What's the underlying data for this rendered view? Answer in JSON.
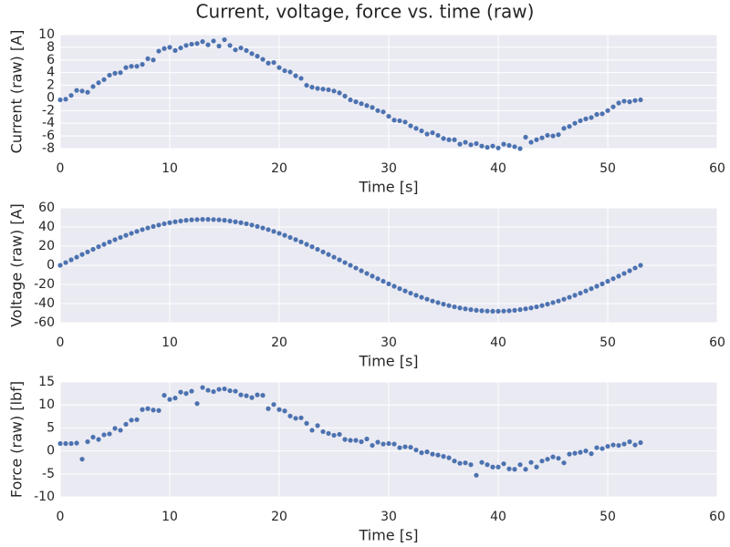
{
  "title": "Current, voltage, force vs. time (raw)",
  "chart_data": [
    {
      "type": "scatter",
      "xlabel": "Time [s]",
      "ylabel": "Current (raw) [A]",
      "color": "#4c72b0",
      "grid": true,
      "xlim": [
        0,
        60
      ],
      "xticks": [
        0,
        10,
        20,
        30,
        40,
        50,
        60
      ],
      "ylim": [
        -8,
        10
      ],
      "yticks": [
        -8,
        -6,
        -4,
        -2,
        0,
        2,
        4,
        6,
        8,
        10
      ],
      "x": [
        0,
        0.5,
        1,
        1.5,
        2,
        2.5,
        3,
        3.5,
        4,
        4.5,
        5,
        5.5,
        6,
        6.5,
        7,
        7.5,
        8,
        8.5,
        9,
        9.5,
        10,
        10.5,
        11,
        11.5,
        12,
        12.5,
        13,
        13.5,
        14,
        14.5,
        15,
        15.5,
        16,
        16.5,
        17,
        17.5,
        18,
        18.5,
        19,
        19.5,
        20,
        20.5,
        21,
        21.5,
        22,
        22.5,
        23,
        23.5,
        24,
        24.5,
        25,
        25.5,
        26,
        26.5,
        27,
        27.5,
        28,
        28.5,
        29,
        29.5,
        30,
        30.5,
        31,
        31.5,
        32,
        32.5,
        33,
        33.5,
        34,
        34.5,
        35,
        35.5,
        36,
        36.5,
        37,
        37.5,
        38,
        38.5,
        39,
        39.5,
        40,
        40.5,
        41,
        41.5,
        42,
        42.5,
        43,
        43.5,
        44,
        44.5,
        45,
        45.5,
        46,
        46.5,
        47,
        47.5,
        48,
        48.5,
        49,
        49.5,
        50,
        50.5,
        51,
        51.5,
        52,
        52.5,
        53
      ],
      "values": [
        -0.3,
        -0.2,
        0.4,
        1.2,
        1.1,
        0.9,
        1.8,
        2.4,
        2.9,
        3.6,
        3.9,
        4.0,
        4.8,
        5.0,
        5.0,
        5.3,
        6.2,
        6.0,
        7.4,
        7.8,
        8.0,
        7.5,
        7.9,
        8.3,
        8.5,
        8.6,
        8.9,
        8.4,
        9.0,
        8.2,
        9.2,
        8.3,
        7.6,
        7.9,
        7.5,
        7.0,
        6.6,
        6.1,
        5.5,
        5.6,
        4.8,
        4.3,
        4.1,
        3.5,
        3.1,
        2.0,
        1.7,
        1.5,
        1.4,
        1.3,
        1.1,
        0.8,
        0.3,
        -0.3,
        -0.6,
        -0.9,
        -1.2,
        -1.5,
        -2.0,
        -2.2,
        -2.9,
        -3.5,
        -3.6,
        -3.8,
        -4.4,
        -4.8,
        -5.2,
        -5.7,
        -5.5,
        -5.9,
        -6.4,
        -6.6,
        -6.6,
        -7.3,
        -7.0,
        -7.4,
        -7.2,
        -7.6,
        -7.8,
        -7.6,
        -7.9,
        -7.3,
        -7.5,
        -7.7,
        -8.0,
        -6.2,
        -7.0,
        -6.6,
        -6.3,
        -5.9,
        -6.0,
        -5.8,
        -4.8,
        -4.5,
        -4.0,
        -3.6,
        -3.3,
        -3.1,
        -2.6,
        -2.5,
        -2.0,
        -1.4,
        -0.8,
        -0.5,
        -0.6,
        -0.4,
        -0.3
      ]
    },
    {
      "type": "scatter",
      "xlabel": "Time [s]",
      "ylabel": "Voltage (raw) [A]",
      "color": "#4c72b0",
      "grid": true,
      "xlim": [
        0,
        60
      ],
      "xticks": [
        0,
        10,
        20,
        30,
        40,
        50,
        60
      ],
      "ylim": [
        -60,
        60
      ],
      "yticks": [
        -60,
        -40,
        -20,
        0,
        20,
        40,
        60
      ],
      "x": [
        0,
        0.5,
        1,
        1.5,
        2,
        2.5,
        3,
        3.5,
        4,
        4.5,
        5,
        5.5,
        6,
        6.5,
        7,
        7.5,
        8,
        8.5,
        9,
        9.5,
        10,
        10.5,
        11,
        11.5,
        12,
        12.5,
        13,
        13.5,
        14,
        14.5,
        15,
        15.5,
        16,
        16.5,
        17,
        17.5,
        18,
        18.5,
        19,
        19.5,
        20,
        20.5,
        21,
        21.5,
        22,
        22.5,
        23,
        23.5,
        24,
        24.5,
        25,
        25.5,
        26,
        26.5,
        27,
        27.5,
        28,
        28.5,
        29,
        29.5,
        30,
        30.5,
        31,
        31.5,
        32,
        32.5,
        33,
        33.5,
        34,
        34.5,
        35,
        35.5,
        36,
        36.5,
        37,
        37.5,
        38,
        38.5,
        39,
        39.5,
        40,
        40.5,
        41,
        41.5,
        42,
        42.5,
        43,
        43.5,
        44,
        44.5,
        45,
        45.5,
        46,
        46.5,
        47,
        47.5,
        48,
        48.5,
        49,
        49.5,
        50,
        50.5,
        51,
        51.5,
        52,
        52.5,
        53
      ],
      "values": [
        0,
        2.8,
        5.7,
        8.5,
        11.3,
        14.0,
        16.7,
        19.4,
        21.9,
        24.4,
        26.8,
        29.1,
        31.3,
        33.4,
        35.4,
        37.3,
        39.0,
        40.6,
        42.1,
        43.4,
        44.5,
        45.5,
        46.3,
        47.0,
        47.5,
        47.8,
        48.0,
        48.0,
        47.8,
        47.5,
        47.0,
        46.3,
        45.5,
        44.5,
        43.4,
        42.1,
        40.6,
        39.0,
        37.3,
        35.4,
        33.4,
        31.3,
        29.1,
        26.8,
        24.4,
        21.9,
        19.4,
        16.7,
        14.0,
        11.3,
        8.5,
        5.7,
        2.8,
        0,
        -2.8,
        -5.7,
        -8.5,
        -11.3,
        -14.0,
        -16.7,
        -19.4,
        -21.9,
        -24.4,
        -26.8,
        -29.1,
        -31.3,
        -33.4,
        -35.4,
        -37.3,
        -39.0,
        -40.6,
        -42.1,
        -43.4,
        -44.5,
        -45.5,
        -46.3,
        -47.0,
        -47.5,
        -47.8,
        -48.0,
        -48.0,
        -47.8,
        -47.5,
        -47.0,
        -46.3,
        -45.5,
        -44.5,
        -43.4,
        -42.1,
        -40.6,
        -39.0,
        -37.3,
        -35.4,
        -33.4,
        -31.3,
        -29.1,
        -26.8,
        -24.4,
        -21.9,
        -19.4,
        -16.7,
        -14.0,
        -11.3,
        -8.5,
        -5.7,
        -2.8,
        0
      ]
    },
    {
      "type": "scatter",
      "xlabel": "Time [s]",
      "ylabel": "Force (raw) [lbf]",
      "color": "#4c72b0",
      "grid": true,
      "xlim": [
        0,
        60
      ],
      "xticks": [
        0,
        10,
        20,
        30,
        40,
        50,
        60
      ],
      "ylim": [
        -10,
        15
      ],
      "yticks": [
        -10,
        -5,
        0,
        5,
        10,
        15
      ],
      "x": [
        0,
        0.5,
        1,
        1.5,
        2,
        2.5,
        3,
        3.5,
        4,
        4.5,
        5,
        5.5,
        6,
        6.5,
        7,
        7.5,
        8,
        8.5,
        9,
        9.5,
        10,
        10.5,
        11,
        11.5,
        12,
        12.5,
        13,
        13.5,
        14,
        14.5,
        15,
        15.5,
        16,
        16.5,
        17,
        17.5,
        18,
        18.5,
        19,
        19.5,
        20,
        20.5,
        21,
        21.5,
        22,
        22.5,
        23,
        23.5,
        24,
        24.5,
        25,
        25.5,
        26,
        26.5,
        27,
        27.5,
        28,
        28.5,
        29,
        29.5,
        30,
        30.5,
        31,
        31.5,
        32,
        32.5,
        33,
        33.5,
        34,
        34.5,
        35,
        35.5,
        36,
        36.5,
        37,
        37.5,
        38,
        38.5,
        39,
        39.5,
        40,
        40.5,
        41,
        41.5,
        42,
        42.5,
        43,
        43.5,
        44,
        44.5,
        45,
        45.5,
        46,
        46.5,
        47,
        47.5,
        48,
        48.5,
        49,
        49.5,
        50,
        50.5,
        51,
        51.5,
        52,
        52.5,
        53
      ],
      "values": [
        1.6,
        1.6,
        1.6,
        1.7,
        -1.8,
        2.0,
        3.0,
        2.5,
        3.5,
        3.7,
        4.9,
        4.5,
        5.8,
        6.7,
        6.8,
        9.0,
        9.2,
        8.9,
        8.8,
        12.1,
        11.2,
        11.5,
        12.8,
        12.5,
        13.0,
        10.3,
        13.8,
        13.2,
        12.9,
        13.4,
        13.5,
        13.1,
        13.0,
        12.2,
        12.0,
        11.6,
        12.2,
        12.1,
        9.2,
        10.1,
        9.0,
        8.7,
        7.6,
        7.1,
        7.2,
        6.0,
        4.5,
        5.5,
        4.2,
        3.8,
        3.4,
        3.6,
        2.5,
        2.3,
        2.3,
        2.0,
        2.6,
        1.2,
        1.9,
        1.5,
        1.6,
        1.5,
        0.7,
        0.9,
        0.8,
        0.2,
        -0.4,
        -0.2,
        -0.7,
        -0.9,
        -1.2,
        -1.5,
        -2.2,
        -2.7,
        -2.6,
        -3.0,
        -5.3,
        -2.5,
        -3.0,
        -3.5,
        -3.5,
        -2.8,
        -3.9,
        -4.0,
        -3.0,
        -4.0,
        -2.5,
        -3.5,
        -2.2,
        -1.8,
        -1.3,
        -1.6,
        -2.6,
        -0.7,
        -0.5,
        -0.3,
        0.0,
        -0.6,
        0.7,
        0.5,
        1.0,
        1.3,
        1.2,
        1.5,
        2.0,
        1.3,
        1.8
      ]
    }
  ]
}
